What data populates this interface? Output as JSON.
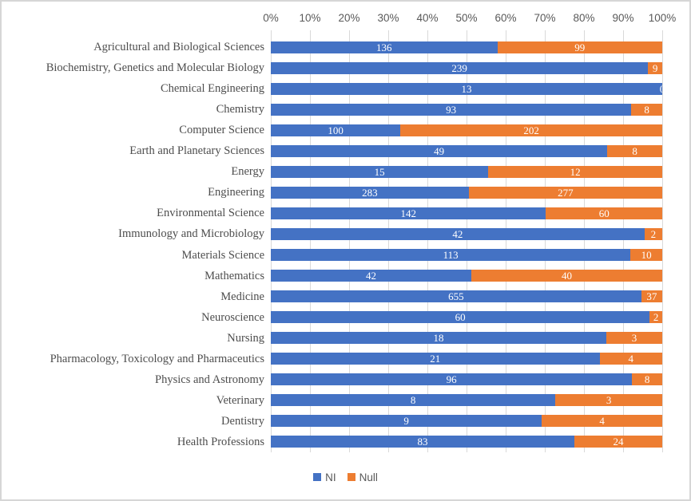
{
  "chart_data": {
    "type": "bar",
    "orientation": "horizontal",
    "stacked": "percent",
    "title": "",
    "xlabel": "",
    "ylabel": "",
    "x_axis": {
      "position": "top",
      "range_percent": [
        0,
        100
      ],
      "ticks": [
        "0%",
        "10%",
        "20%",
        "30%",
        "40%",
        "50%",
        "60%",
        "70%",
        "80%",
        "90%",
        "100%"
      ]
    },
    "grid": true,
    "legend_position": "bottom",
    "categories": [
      "Agricultural and Biological Sciences",
      "Biochemistry, Genetics and Molecular Biology",
      "Chemical Engineering",
      "Chemistry",
      "Computer Science",
      "Earth and Planetary Sciences",
      "Energy",
      "Engineering",
      "Environmental Science",
      "Immunology and Microbiology",
      "Materials Science",
      "Mathematics",
      "Medicine",
      "Neuroscience",
      "Nursing",
      "Pharmacology, Toxicology and Pharmaceutics",
      "Physics and Astronomy",
      "Veterinary",
      "Dentistry",
      "Health Professions"
    ],
    "series": [
      {
        "name": "NI",
        "color": "#4472C4",
        "values": [
          136,
          239,
          13,
          93,
          100,
          49,
          15,
          283,
          142,
          42,
          113,
          42,
          655,
          60,
          18,
          21,
          96,
          8,
          9,
          83
        ]
      },
      {
        "name": "Null",
        "color": "#ED7D31",
        "values": [
          99,
          9,
          0,
          8,
          202,
          8,
          12,
          277,
          60,
          2,
          10,
          40,
          37,
          2,
          3,
          4,
          8,
          3,
          4,
          24
        ]
      }
    ],
    "value_label_color": "#ffffff",
    "gridline_color": "#d9d9d9",
    "axis_text_color": "#595959"
  },
  "legend": {
    "items": [
      {
        "label": "NI",
        "color": "#4472C4"
      },
      {
        "label": "Null",
        "color": "#ED7D31"
      }
    ]
  }
}
